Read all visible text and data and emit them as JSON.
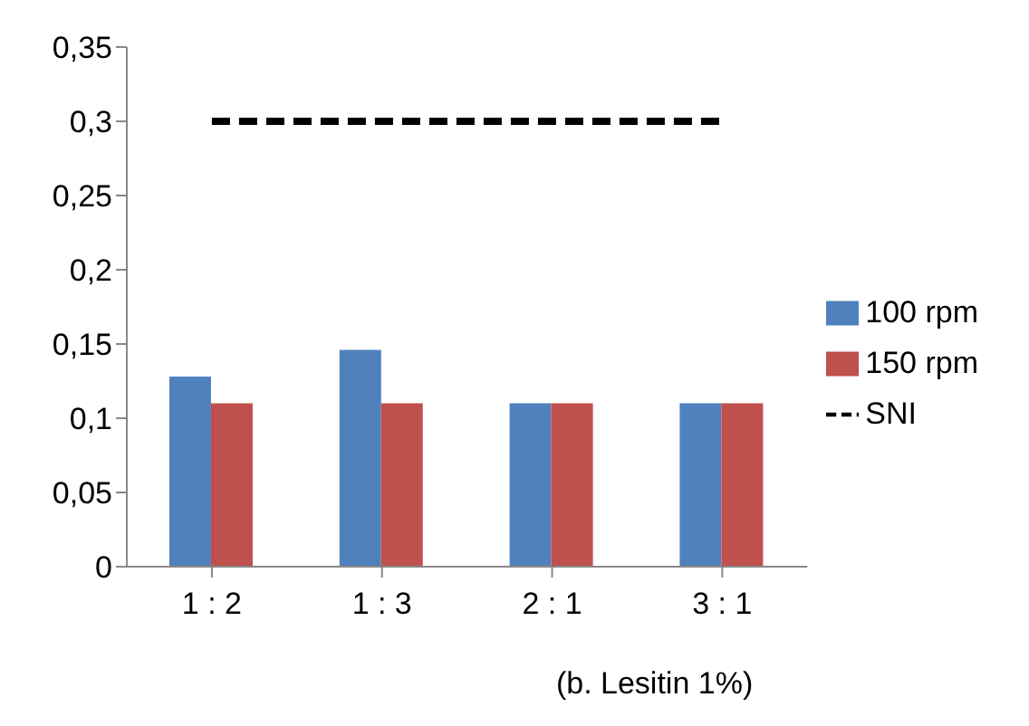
{
  "chart_data": {
    "type": "bar",
    "xlabel": "(b. Lesitin 1%)",
    "categories": [
      "1 : 2",
      "1 : 3",
      "2 : 1",
      "3 : 1"
    ],
    "series": [
      {
        "name": "100 rpm",
        "color": "#4f81bd",
        "values": [
          0.128,
          0.146,
          0.11,
          0.11
        ]
      },
      {
        "name": "150 rpm",
        "color": "#c0504d",
        "values": [
          0.11,
          0.11,
          0.11,
          0.11
        ]
      },
      {
        "name": "SNI",
        "type": "line",
        "color": "#000000",
        "line_style": "dashed",
        "marker": "none",
        "values": [
          0.3,
          0.3,
          0.3,
          0.3
        ]
      }
    ],
    "ylim": [
      0,
      0.35
    ],
    "yticks": [
      0,
      {
        "value": 0.05,
        "label": "0,05"
      },
      {
        "value": 0.1,
        "label": "0,1"
      },
      {
        "value": 0.15,
        "label": "0,15"
      },
      {
        "value": 0.2,
        "label": "0,2"
      },
      {
        "value": 0.25,
        "label": "0,25"
      },
      {
        "value": 0.3,
        "label": "0,3"
      },
      {
        "value": 0.35,
        "label": "0,35"
      }
    ],
    "grid": false,
    "legend": "right"
  }
}
